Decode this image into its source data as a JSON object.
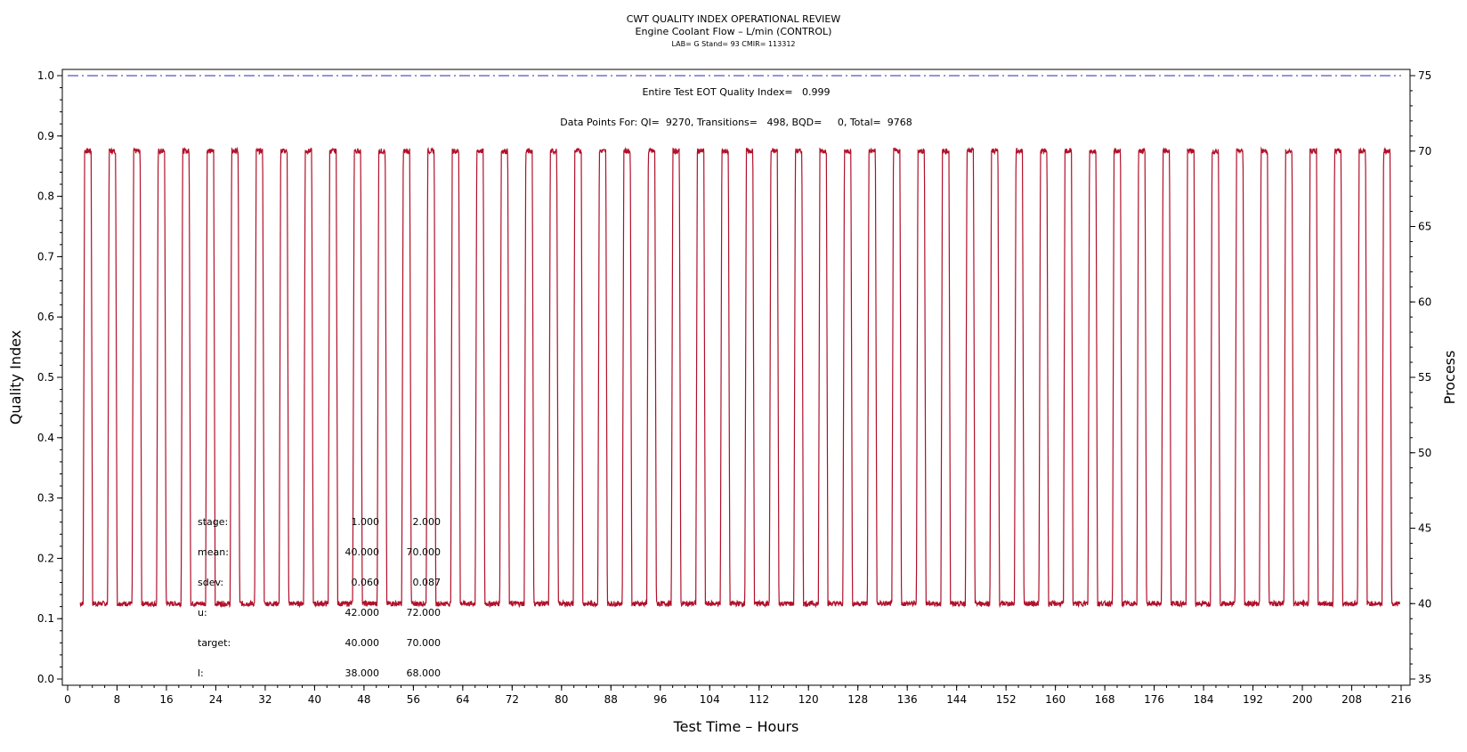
{
  "titles": {
    "line1": "CWT QUALITY INDEX OPERATIONAL REVIEW",
    "line2": "Engine Coolant Flow – L/min (CONTROL)",
    "line3": "LAB= G Stand= 93 CMIR= 113312"
  },
  "annotations": {
    "quality_index": "Entire Test EOT Quality Index=   0.999",
    "data_points": "Data Points For: QI=  9270, Transitions=   498, BQD=     0, Total=  9768"
  },
  "stats": {
    "rows": [
      {
        "label": "stage:",
        "v1": "1.000",
        "v2": "2.000"
      },
      {
        "label": "mean:",
        "v1": "40.000",
        "v2": "70.000"
      },
      {
        "label": "sdev:",
        "v1": "0.060",
        "v2": "0.087"
      },
      {
        "label": "u:",
        "v1": "42.000",
        "v2": "72.000"
      },
      {
        "label": "target:",
        "v1": "40.000",
        "v2": "70.000"
      },
      {
        "label": "l:",
        "v1": "38.000",
        "v2": "68.000"
      }
    ]
  },
  "colors": {
    "series": "#b0102a",
    "reference_line": "#2a2ab4",
    "axis": "#000000"
  },
  "chart_data": {
    "type": "line",
    "title": "CWT QUALITY INDEX OPERATIONAL REVIEW",
    "xlabel": "Test Time – Hours",
    "ylabel": "Quality Index",
    "y2label": "Process",
    "xlim": [
      0,
      216
    ],
    "ylim": [
      0,
      1.0
    ],
    "y2lim": [
      35,
      75
    ],
    "xticks": [
      0,
      8,
      16,
      24,
      32,
      40,
      48,
      56,
      64,
      72,
      80,
      88,
      96,
      104,
      112,
      120,
      128,
      136,
      144,
      152,
      160,
      168,
      176,
      184,
      192,
      200,
      208,
      216
    ],
    "yticks": [
      "0.0",
      "0.1",
      "0.2",
      "0.3",
      "0.4",
      "0.5",
      "0.6",
      "0.7",
      "0.8",
      "0.9",
      "1.0"
    ],
    "y2ticks": [
      35,
      40,
      45,
      50,
      55,
      60,
      65,
      70,
      75
    ],
    "grid": false,
    "series": [
      {
        "axis": "right",
        "style": "solid",
        "pattern": "cyclic square wave",
        "low_value": 40,
        "high_value": 70,
        "first_rise": 2.5,
        "high_duration": 1.3,
        "low_duration": 2.67,
        "cycles": 54
      },
      {
        "axis": "left",
        "style": "dash-dot",
        "values": [
          1.0,
          1.0
        ],
        "x": [
          0,
          216
        ]
      }
    ]
  }
}
